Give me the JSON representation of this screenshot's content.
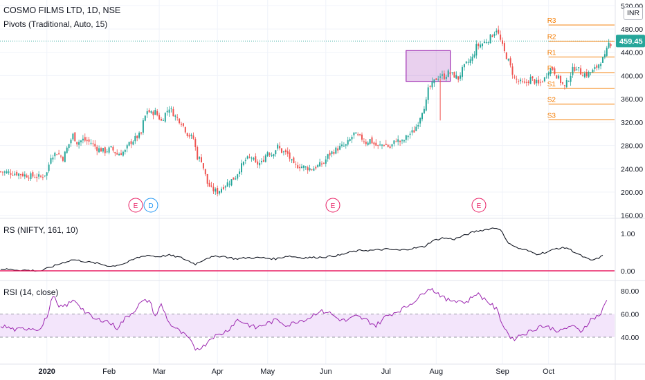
{
  "header": {
    "title": "COSMO FILMS LTD, 1D, NSE",
    "pivots_label": "Pivots (Traditional, Auto, 15)",
    "currency": "INR",
    "rs_label": "RS (NIFTY, 161, 10)",
    "rsi_label": "RSI (14, close)"
  },
  "colors": {
    "up": "#26a69a",
    "down": "#ef5350",
    "pivot": "#f57c00",
    "rs_line": "#131722",
    "rs_baseline": "#e91e63",
    "rsi_line": "#9c27b0",
    "rsi_band": "#f3e5fb",
    "highlight_box": "#9c27b0"
  },
  "chart_data": [
    {
      "type": "candlestick",
      "panel": "price",
      "y_axis": {
        "ticks": [
          160,
          200,
          240,
          280,
          320,
          360,
          400,
          440,
          480,
          520
        ],
        "tick_labels": [
          "160.00",
          "200.00",
          "240.00",
          "280.00",
          "320.00",
          "360.00",
          "400.00",
          "440.00",
          "480.00",
          "520.00"
        ]
      },
      "x_axis": {
        "labels": [
          "2020",
          "Feb",
          "Mar",
          "Apr",
          "May",
          "Jun",
          "Jul",
          "Aug",
          "Sep",
          "Oct"
        ]
      },
      "last_price": 459.45,
      "last_price_label": "459.45",
      "pivot_levels": [
        {
          "name": "R3",
          "value": 487
        },
        {
          "name": "R2",
          "value": 459
        },
        {
          "name": "R1",
          "value": 432
        },
        {
          "name": "P",
          "value": 405
        },
        {
          "name": "S1",
          "value": 378
        },
        {
          "name": "S2",
          "value": 351
        },
        {
          "name": "S3",
          "value": 324
        }
      ],
      "events": [
        {
          "label": "E",
          "kind": "earnings",
          "month": "Feb"
        },
        {
          "label": "D",
          "kind": "dividend",
          "month": "Feb"
        },
        {
          "label": "E",
          "kind": "earnings",
          "month": "Jun"
        },
        {
          "label": "E",
          "kind": "earnings",
          "month": "Aug"
        }
      ],
      "close_path": [
        [
          0,
          235
        ],
        [
          8,
          232
        ],
        [
          14,
          228
        ],
        [
          20,
          226
        ],
        [
          23,
          233
        ],
        [
          25,
          262
        ],
        [
          28,
          268
        ],
        [
          31,
          258
        ],
        [
          33,
          275
        ],
        [
          36,
          298
        ],
        [
          38,
          285
        ],
        [
          41,
          290
        ],
        [
          45,
          285
        ],
        [
          48,
          275
        ],
        [
          52,
          270
        ],
        [
          55,
          275
        ],
        [
          58,
          265
        ],
        [
          62,
          270
        ],
        [
          64,
          283
        ],
        [
          67,
          292
        ],
        [
          70,
          300
        ],
        [
          71,
          320
        ],
        [
          73,
          340
        ],
        [
          75,
          335
        ],
        [
          77,
          338
        ],
        [
          80,
          322
        ],
        [
          82,
          335
        ],
        [
          84,
          345
        ],
        [
          87,
          330
        ],
        [
          90,
          320
        ],
        [
          93,
          300
        ],
        [
          96,
          292
        ],
        [
          98,
          260
        ],
        [
          100,
          255
        ],
        [
          103,
          215
        ],
        [
          105,
          205
        ],
        [
          108,
          200
        ],
        [
          111,
          210
        ],
        [
          114,
          218
        ],
        [
          117,
          226
        ],
        [
          119,
          240
        ],
        [
          122,
          255
        ],
        [
          125,
          260
        ],
        [
          127,
          248
        ],
        [
          130,
          250
        ],
        [
          133,
          270
        ],
        [
          135,
          265
        ],
        [
          138,
          278
        ],
        [
          140,
          270
        ],
        [
          143,
          265
        ],
        [
          146,
          245
        ],
        [
          149,
          245
        ],
        [
          152,
          242
        ],
        [
          155,
          240
        ],
        [
          158,
          245
        ],
        [
          161,
          250
        ],
        [
          163,
          262
        ],
        [
          165,
          268
        ],
        [
          168,
          275
        ],
        [
          170,
          278
        ],
        [
          172,
          280
        ],
        [
          174,
          290
        ],
        [
          176,
          300
        ],
        [
          178,
          295
        ],
        [
          180,
          292
        ],
        [
          182,
          285
        ],
        [
          184,
          290
        ],
        [
          186,
          282
        ],
        [
          188,
          278
        ],
        [
          191,
          283
        ],
        [
          194,
          276
        ],
        [
          197,
          290
        ],
        [
          200,
          285
        ],
        [
          203,
          298
        ],
        [
          206,
          305
        ],
        [
          208,
          320
        ],
        [
          210,
          340
        ],
        [
          212,
          355
        ],
        [
          213,
          375
        ],
        [
          215,
          385
        ],
        [
          217,
          395
        ],
        [
          219,
          400
        ],
        [
          221,
          398
        ],
        [
          223,
          405
        ],
        [
          226,
          400
        ],
        [
          228,
          395
        ],
        [
          230,
          410
        ],
        [
          232,
          420
        ],
        [
          235,
          430
        ],
        [
          237,
          450
        ],
        [
          240,
          455
        ],
        [
          243,
          462
        ],
        [
          245,
          470
        ],
        [
          247,
          480
        ],
        [
          249,
          460
        ],
        [
          251,
          440
        ],
        [
          253,
          425
        ],
        [
          256,
          395
        ],
        [
          258,
          390
        ],
        [
          261,
          385
        ],
        [
          264,
          395
        ],
        [
          266,
          390
        ],
        [
          268,
          385
        ],
        [
          271,
          395
        ],
        [
          273,
          410
        ],
        [
          275,
          412
        ],
        [
          277,
          400
        ],
        [
          279,
          390
        ],
        [
          281,
          380
        ],
        [
          283,
          395
        ],
        [
          285,
          410
        ],
        [
          287,
          415
        ],
        [
          289,
          405
        ],
        [
          292,
          402
        ],
        [
          295,
          408
        ],
        [
          297,
          415
        ],
        [
          299,
          425
        ],
        [
          301,
          432
        ],
        [
          303,
          455
        ]
      ]
    },
    {
      "type": "line",
      "panel": "rs",
      "name": "RS (NIFTY, 161, 10)",
      "y_axis": {
        "ticks": [
          0,
          1
        ],
        "tick_labels": [
          "0.00",
          "1.00"
        ]
      },
      "baseline": 0,
      "close_path": [
        [
          0,
          0.05
        ],
        [
          10,
          0.02
        ],
        [
          20,
          0.0
        ],
        [
          25,
          0.1
        ],
        [
          30,
          0.2
        ],
        [
          36,
          0.3
        ],
        [
          42,
          0.25
        ],
        [
          48,
          0.2
        ],
        [
          55,
          0.12
        ],
        [
          62,
          0.2
        ],
        [
          68,
          0.35
        ],
        [
          73,
          0.42
        ],
        [
          78,
          0.38
        ],
        [
          84,
          0.42
        ],
        [
          90,
          0.35
        ],
        [
          97,
          0.18
        ],
        [
          103,
          0.35
        ],
        [
          110,
          0.4
        ],
        [
          117,
          0.32
        ],
        [
          123,
          0.35
        ],
        [
          130,
          0.35
        ],
        [
          137,
          0.32
        ],
        [
          143,
          0.4
        ],
        [
          150,
          0.35
        ],
        [
          157,
          0.36
        ],
        [
          163,
          0.38
        ],
        [
          169,
          0.42
        ],
        [
          174,
          0.5
        ],
        [
          180,
          0.55
        ],
        [
          186,
          0.55
        ],
        [
          192,
          0.58
        ],
        [
          199,
          0.55
        ],
        [
          205,
          0.6
        ],
        [
          211,
          0.65
        ],
        [
          215,
          0.8
        ],
        [
          220,
          0.88
        ],
        [
          226,
          0.85
        ],
        [
          231,
          0.95
        ],
        [
          236,
          1.05
        ],
        [
          241,
          1.1
        ],
        [
          246,
          1.15
        ],
        [
          249,
          1.12
        ],
        [
          252,
          0.8
        ],
        [
          257,
          0.62
        ],
        [
          262,
          0.55
        ],
        [
          267,
          0.45
        ],
        [
          272,
          0.5
        ],
        [
          277,
          0.6
        ],
        [
          282,
          0.62
        ],
        [
          286,
          0.5
        ],
        [
          290,
          0.38
        ],
        [
          294,
          0.28
        ],
        [
          297,
          0.32
        ],
        [
          300,
          0.4
        ]
      ]
    },
    {
      "type": "line",
      "panel": "rsi",
      "name": "RSI (14, close)",
      "y_axis": {
        "ticks": [
          40,
          60,
          80
        ],
        "tick_labels": [
          "40.00",
          "60.00",
          "80.00"
        ]
      },
      "band": [
        40,
        60
      ],
      "close_path": [
        [
          0,
          50
        ],
        [
          8,
          46
        ],
        [
          14,
          48
        ],
        [
          20,
          47
        ],
        [
          24,
          62
        ],
        [
          26,
          77
        ],
        [
          29,
          65
        ],
        [
          33,
          68
        ],
        [
          37,
          72
        ],
        [
          42,
          62
        ],
        [
          47,
          55
        ],
        [
          52,
          55
        ],
        [
          58,
          48
        ],
        [
          62,
          56
        ],
        [
          66,
          62
        ],
        [
          70,
          70
        ],
        [
          74,
          72
        ],
        [
          77,
          58
        ],
        [
          80,
          68
        ],
        [
          84,
          52
        ],
        [
          89,
          45
        ],
        [
          93,
          40
        ],
        [
          97,
          30
        ],
        [
          101,
          32
        ],
        [
          105,
          40
        ],
        [
          109,
          42
        ],
        [
          113,
          46
        ],
        [
          118,
          55
        ],
        [
          122,
          52
        ],
        [
          127,
          48
        ],
        [
          133,
          52
        ],
        [
          138,
          55
        ],
        [
          143,
          50
        ],
        [
          148,
          54
        ],
        [
          153,
          56
        ],
        [
          158,
          62
        ],
        [
          163,
          62
        ],
        [
          168,
          56
        ],
        [
          172,
          54
        ],
        [
          177,
          58
        ],
        [
          182,
          55
        ],
        [
          187,
          50
        ],
        [
          192,
          58
        ],
        [
          197,
          62
        ],
        [
          201,
          65
        ],
        [
          205,
          70
        ],
        [
          209,
          75
        ],
        [
          213,
          83
        ],
        [
          218,
          78
        ],
        [
          222,
          72
        ],
        [
          227,
          72
        ],
        [
          232,
          70
        ],
        [
          237,
          78
        ],
        [
          242,
          72
        ],
        [
          247,
          64
        ],
        [
          251,
          48
        ],
        [
          255,
          38
        ],
        [
          259,
          42
        ],
        [
          264,
          45
        ],
        [
          269,
          50
        ],
        [
          274,
          48
        ],
        [
          279,
          45
        ],
        [
          284,
          50
        ],
        [
          289,
          45
        ],
        [
          294,
          55
        ],
        [
          299,
          60
        ],
        [
          302,
          72
        ]
      ]
    }
  ]
}
